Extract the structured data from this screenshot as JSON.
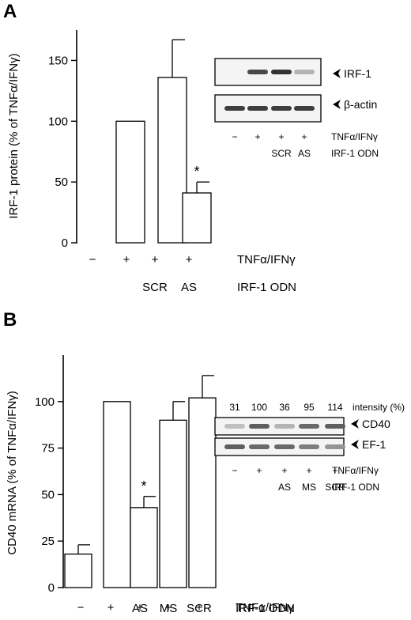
{
  "chart_data": [
    {
      "panel": "A",
      "type": "bar",
      "ylabel": "IRF-1 protein (% of TNFα/IFNγ)",
      "ylim": [
        0,
        175
      ],
      "yticks": [
        0,
        50,
        100,
        150
      ],
      "categories": [
        "−",
        "+",
        "+",
        "+"
      ],
      "category_odn": [
        "",
        "",
        "SCR",
        "AS"
      ],
      "values": [
        0,
        100,
        136,
        41
      ],
      "errors": [
        0,
        0,
        31,
        9
      ],
      "significance": [
        "",
        "",
        "",
        "*"
      ],
      "row_labels": [
        "TNFα/IFNγ",
        "IRF-1 ODN"
      ],
      "inset": {
        "bands": [
          "IRF-1",
          "β-actin"
        ],
        "lanes": [
          "−",
          "+",
          "+",
          "+"
        ],
        "lane_odn": [
          "",
          "",
          "SCR",
          "AS"
        ],
        "band_intensity": {
          "IRF-1": [
            0.0,
            0.85,
            0.95,
            0.35
          ],
          "β-actin": [
            0.9,
            0.9,
            0.9,
            0.9
          ]
        },
        "row_labels": [
          "TNFα/IFNγ",
          "IRF-1 ODN"
        ]
      }
    },
    {
      "panel": "B",
      "type": "bar",
      "ylabel": "CD40 mRNA (% of TNFα/IFNγ)",
      "ylim": [
        0,
        125
      ],
      "yticks": [
        0,
        25,
        50,
        75,
        100
      ],
      "categories": [
        "−",
        "+",
        "+",
        "+",
        "+"
      ],
      "category_odn": [
        "",
        "",
        "AS",
        "MS",
        "SCR"
      ],
      "values": [
        18,
        100,
        43,
        90,
        102
      ],
      "errors": [
        5,
        0,
        6,
        10,
        12
      ],
      "significance": [
        "",
        "",
        "*",
        "",
        ""
      ],
      "row_labels": [
        "TNFα/IFNγ",
        "IRF-1 ODN"
      ],
      "inset": {
        "intensity_values": [
          "31",
          "100",
          "36",
          "95",
          "114"
        ],
        "intensity_label": "intensity (%)",
        "bands": [
          "CD40",
          "EF-1"
        ],
        "lanes": [
          "−",
          "+",
          "+",
          "+",
          "+"
        ],
        "lane_odn": [
          "",
          "",
          "AS",
          "MS",
          "SCR"
        ],
        "band_intensity": {
          "CD40": [
            0.3,
            0.75,
            0.35,
            0.7,
            0.75
          ],
          "EF-1": [
            0.75,
            0.7,
            0.7,
            0.6,
            0.5
          ]
        },
        "row_labels": [
          "TNFα/IFNγ",
          "IRF-1 ODN"
        ]
      }
    }
  ]
}
